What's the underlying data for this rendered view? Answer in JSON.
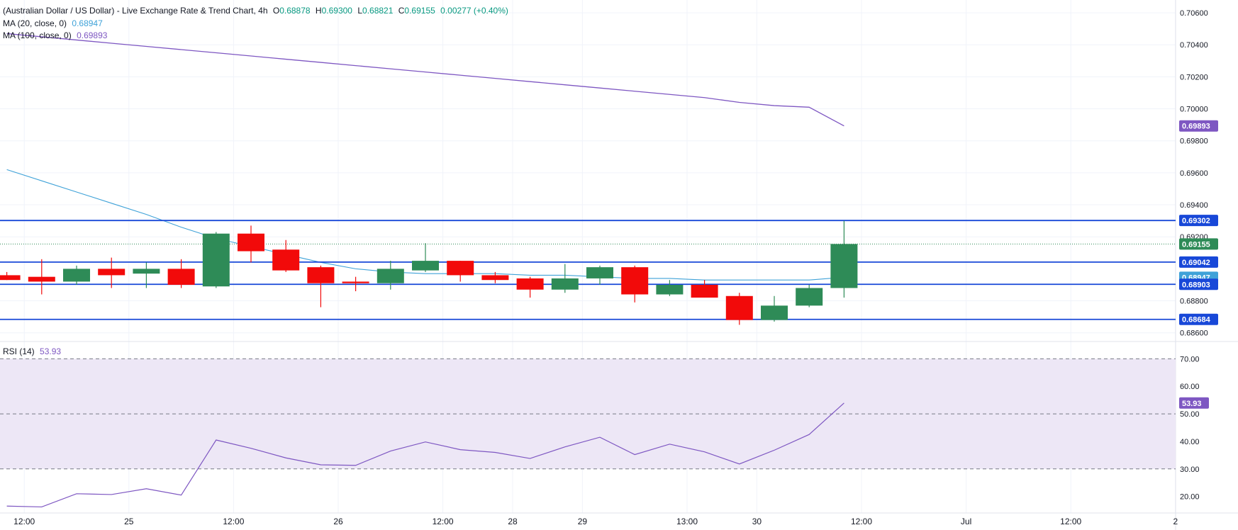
{
  "colors": {
    "up": "#2e8b57",
    "down": "#f20a0a",
    "ma20": "#3fa2d8",
    "ma100": "#7e57c2",
    "level_line": "#1848d8",
    "rsi_line": "#7e57c2",
    "rsi_band": "#ede7f6",
    "grid": "#f0f3fa",
    "text": "#131722",
    "up_text": "#089981"
  },
  "legend": {
    "title": "(Australian Dollar / US Dollar) - Live Exchange Rate & Trend Chart, 4h",
    "o_label": "O",
    "o_value": "0.68878",
    "h_label": "H",
    "h_value": "0.69300",
    "l_label": "L",
    "l_value": "0.68821",
    "c_label": "C",
    "c_value": "0.69155",
    "change": "0.00277 (+0.40%)",
    "ma20_label": "MA (20, close, 0)",
    "ma20_value": "0.68947",
    "ma100_label": "MA (100, close, 0)",
    "ma100_value": "0.69893",
    "rsi_label": "RSI (14)",
    "rsi_value": "53.93"
  },
  "chart_data": [
    {
      "type": "candlestick",
      "timeframe": "4h",
      "ylim": [
        0.6855,
        0.7068
      ],
      "x_ticks": [
        {
          "i": 0.5,
          "label": "12:00"
        },
        {
          "i": 3.5,
          "label": "25"
        },
        {
          "i": 6.5,
          "label": "12:00"
        },
        {
          "i": 9.5,
          "label": "26"
        },
        {
          "i": 12.5,
          "label": "12:00"
        },
        {
          "i": 14.5,
          "label": "28"
        },
        {
          "i": 16.5,
          "label": "29"
        },
        {
          "i": 19.5,
          "label": "13:00"
        },
        {
          "i": 21.5,
          "label": "30"
        },
        {
          "i": 24.5,
          "label": "12:00"
        },
        {
          "i": 27.5,
          "label": "Jul"
        },
        {
          "i": 30.5,
          "label": "12:00"
        },
        {
          "i": 33.5,
          "label": "2"
        }
      ],
      "y_ticks": [
        "0.68600",
        "0.68800",
        "0.69200",
        "0.69400",
        "0.69600",
        "0.69800",
        "0.70000",
        "0.70200",
        "0.70400",
        "0.70600"
      ],
      "candles": [
        {
          "o": 0.6896,
          "h": 0.6898,
          "l": 0.6893,
          "c": 0.6893
        },
        {
          "o": 0.6895,
          "h": 0.6906,
          "l": 0.6884,
          "c": 0.6892
        },
        {
          "o": 0.6892,
          "h": 0.6902,
          "l": 0.689,
          "c": 0.69
        },
        {
          "o": 0.69,
          "h": 0.6907,
          "l": 0.6888,
          "c": 0.6896
        },
        {
          "o": 0.6897,
          "h": 0.6904,
          "l": 0.6888,
          "c": 0.69
        },
        {
          "o": 0.69,
          "h": 0.6906,
          "l": 0.6888,
          "c": 0.689
        },
        {
          "o": 0.6889,
          "h": 0.6923,
          "l": 0.6888,
          "c": 0.6922
        },
        {
          "o": 0.6922,
          "h": 0.6927,
          "l": 0.6904,
          "c": 0.6911
        },
        {
          "o": 0.6912,
          "h": 0.6918,
          "l": 0.6898,
          "c": 0.6899
        },
        {
          "o": 0.6901,
          "h": 0.6902,
          "l": 0.6876,
          "c": 0.6891
        },
        {
          "o": 0.6892,
          "h": 0.6895,
          "l": 0.6886,
          "c": 0.6891
        },
        {
          "o": 0.6891,
          "h": 0.6905,
          "l": 0.6887,
          "c": 0.69
        },
        {
          "o": 0.6899,
          "h": 0.6916,
          "l": 0.6898,
          "c": 0.6905
        },
        {
          "o": 0.6905,
          "h": 0.6905,
          "l": 0.6892,
          "c": 0.6896
        },
        {
          "o": 0.6896,
          "h": 0.6898,
          "l": 0.6891,
          "c": 0.6893
        },
        {
          "o": 0.6894,
          "h": 0.6895,
          "l": 0.6882,
          "c": 0.6887
        },
        {
          "o": 0.6887,
          "h": 0.6903,
          "l": 0.6885,
          "c": 0.6894
        },
        {
          "o": 0.6894,
          "h": 0.6902,
          "l": 0.689,
          "c": 0.6901
        },
        {
          "o": 0.6901,
          "h": 0.6902,
          "l": 0.6879,
          "c": 0.6884
        },
        {
          "o": 0.6884,
          "h": 0.6893,
          "l": 0.6883,
          "c": 0.689
        },
        {
          "o": 0.689,
          "h": 0.6893,
          "l": 0.6882,
          "c": 0.6882
        },
        {
          "o": 0.6883,
          "h": 0.6885,
          "l": 0.6865,
          "c": 0.6868
        },
        {
          "o": 0.6868,
          "h": 0.6883,
          "l": 0.6867,
          "c": 0.6877
        },
        {
          "o": 0.6877,
          "h": 0.689,
          "l": 0.6876,
          "c": 0.6888
        },
        {
          "o": 0.6888,
          "h": 0.693,
          "l": 0.6882,
          "c": 0.69155
        }
      ],
      "ma20": [
        0.6962,
        0.6955,
        0.6948,
        0.6941,
        0.6934,
        0.6926,
        0.6919,
        0.6914,
        0.6909,
        0.6904,
        0.69,
        0.6898,
        0.6897,
        0.6897,
        0.6897,
        0.6896,
        0.6896,
        0.6895,
        0.6894,
        0.6894,
        0.6893,
        0.6893,
        0.6893,
        0.6893,
        0.68947
      ],
      "ma100": [
        0.7047,
        0.7045,
        0.7043,
        0.7041,
        0.7039,
        0.7037,
        0.7035,
        0.7033,
        0.7031,
        0.7029,
        0.7027,
        0.7025,
        0.7023,
        0.7021,
        0.7019,
        0.7017,
        0.7015,
        0.7013,
        0.7011,
        0.7009,
        0.7007,
        0.7004,
        0.7002,
        0.7001,
        0.69893
      ],
      "levels": [
        {
          "value": 0.69302,
          "label": "0.69302",
          "style": "solid"
        },
        {
          "value": 0.69155,
          "label": "0.69155",
          "style": "dotted"
        },
        {
          "value": 0.69042,
          "label": "0.69042",
          "style": "solid"
        },
        {
          "value": 0.68947,
          "label": "0.68947",
          "style": "none"
        },
        {
          "value": 0.68903,
          "label": "0.68903",
          "style": "solid"
        },
        {
          "value": 0.68684,
          "label": "0.68684",
          "style": "solid"
        },
        {
          "value": 0.69893,
          "label": "0.69893",
          "style": "none"
        }
      ]
    },
    {
      "type": "line",
      "ylim": [
        14,
        76
      ],
      "y_ticks": [
        "20.00",
        "30.00",
        "40.00",
        "50.00",
        "60.00",
        "70.00"
      ],
      "guides": [
        70,
        50,
        30
      ],
      "band": [
        30,
        70
      ],
      "rsi": [
        16.5,
        16.2,
        21.0,
        20.7,
        22.8,
        20.5,
        40.5,
        37.5,
        34.0,
        31.5,
        31.3,
        36.5,
        39.8,
        37.0,
        36.0,
        33.8,
        38.0,
        41.5,
        35.2,
        39.0,
        36.2,
        31.8,
        36.8,
        42.5,
        53.93
      ],
      "value_label": "53.93"
    }
  ]
}
